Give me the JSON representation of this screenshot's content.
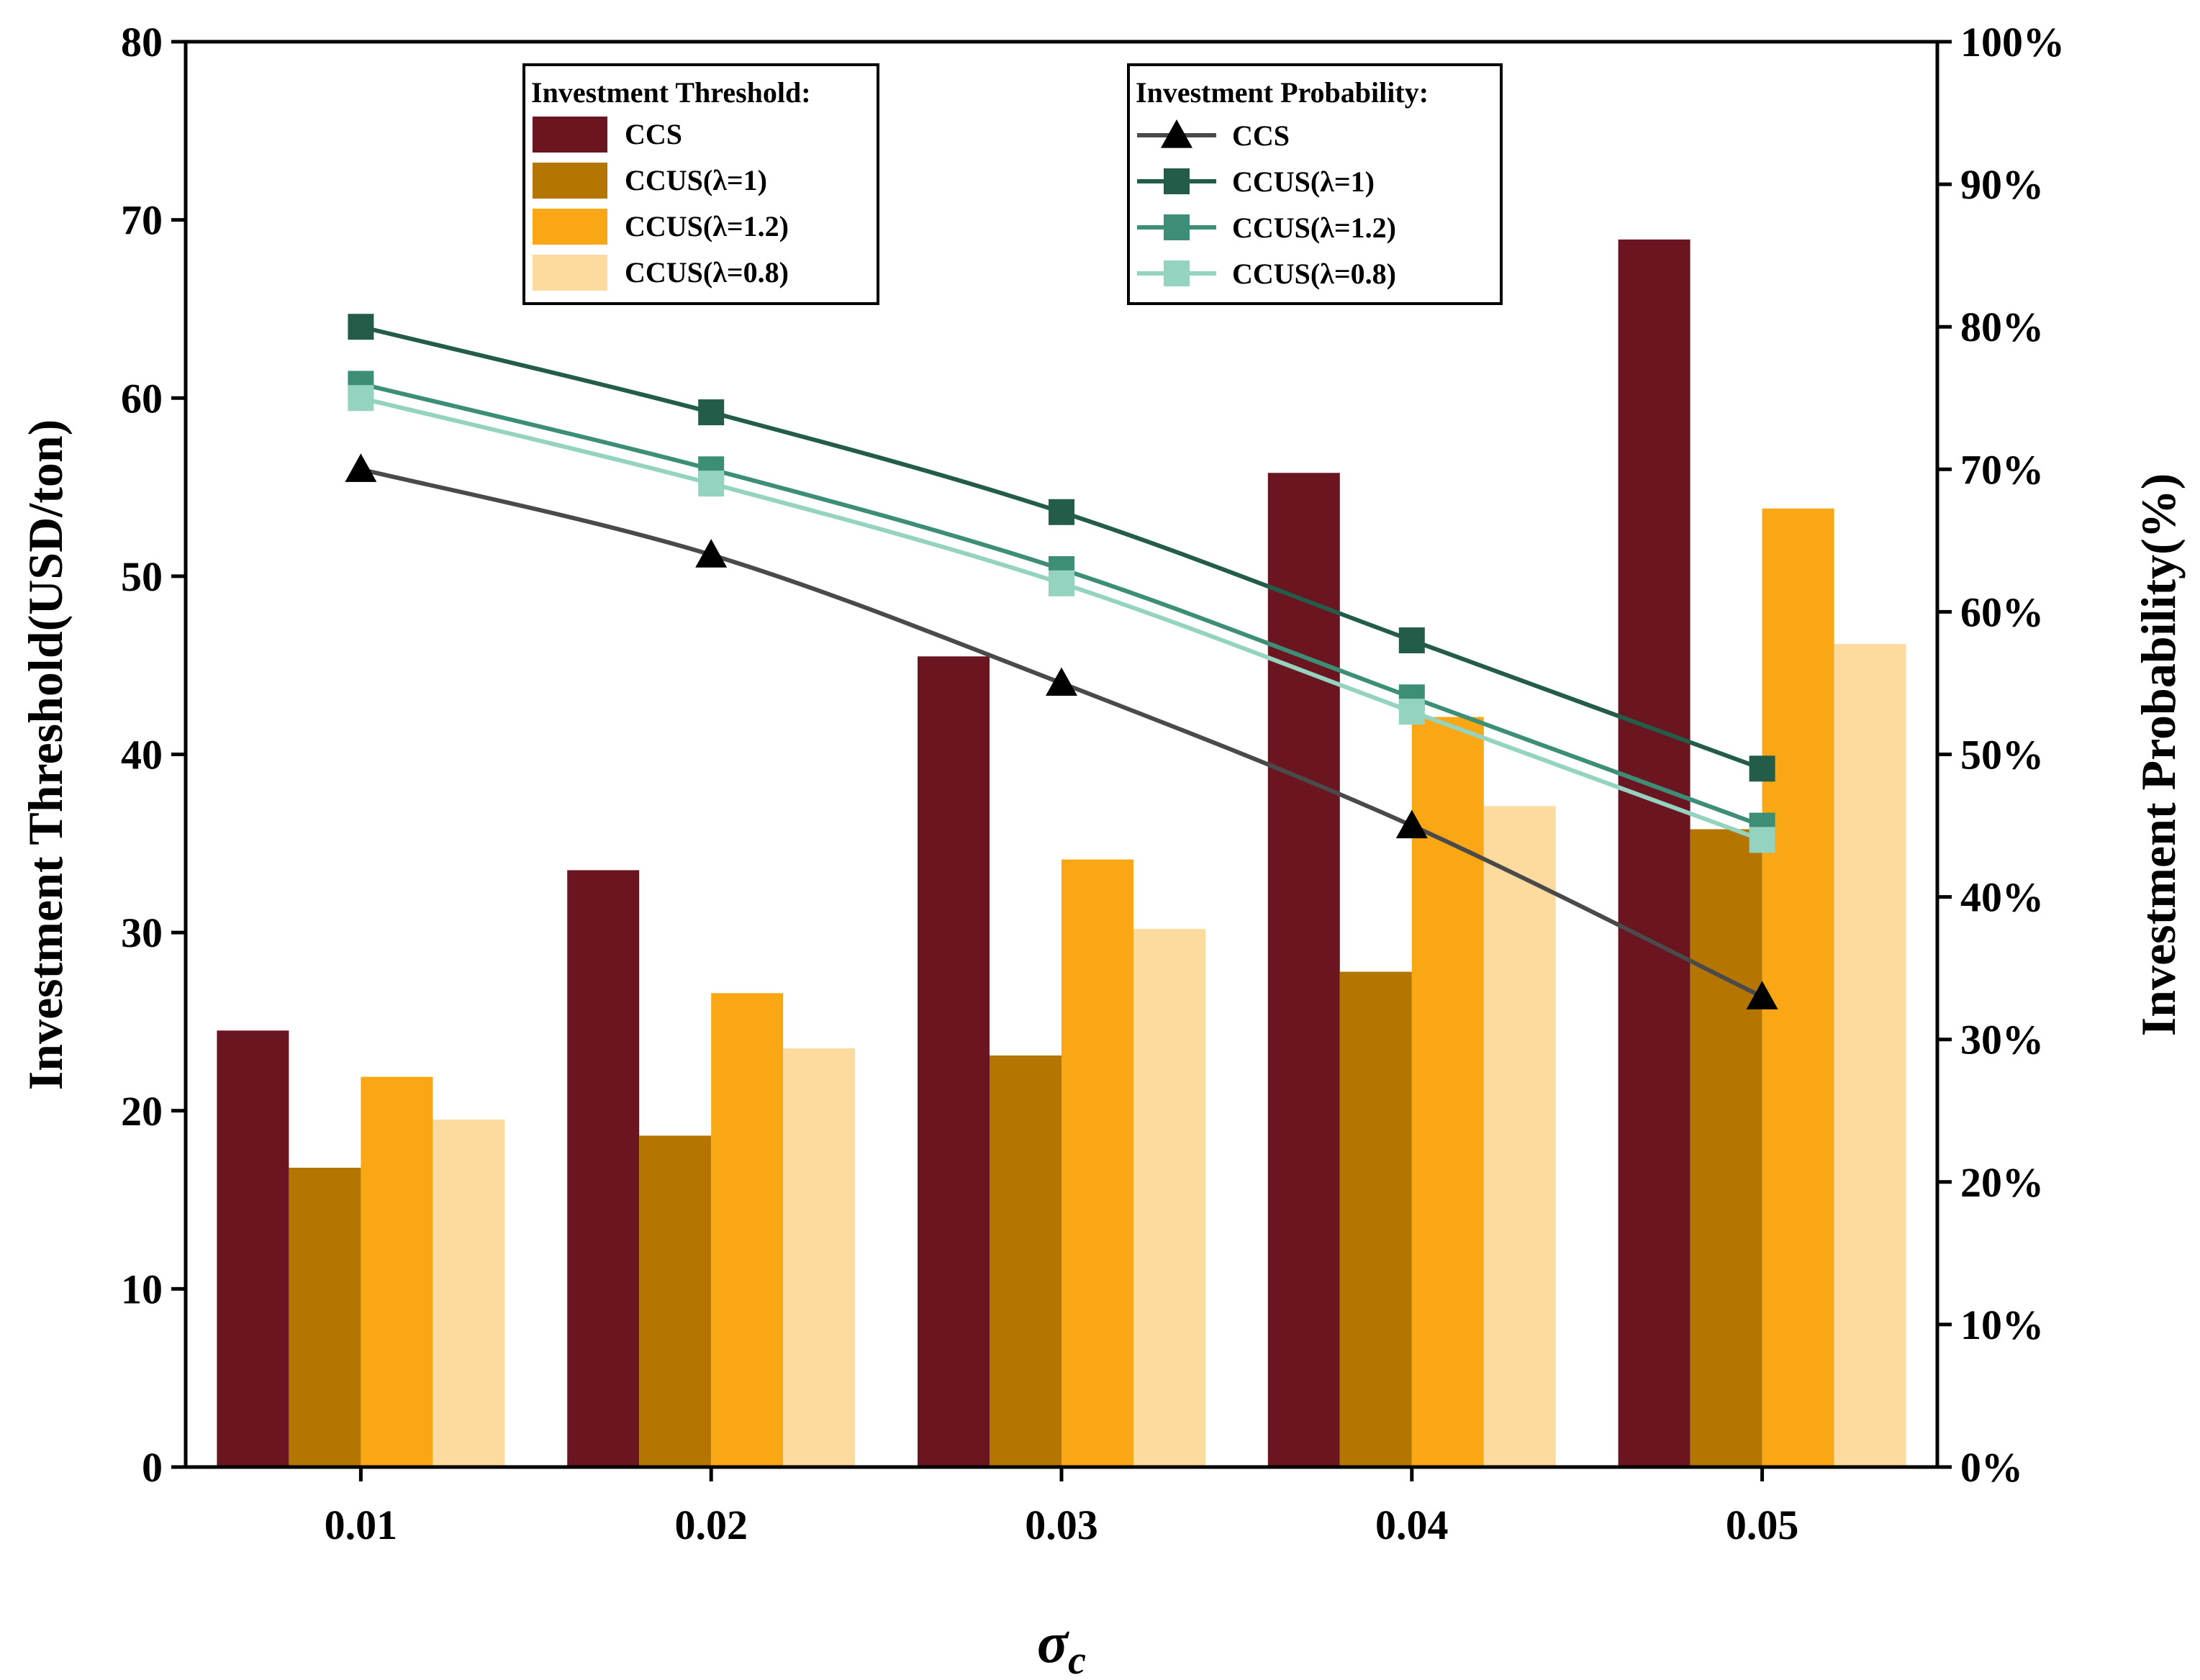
{
  "chart_data": {
    "type": "bar",
    "categories": [
      "0.01",
      "0.02",
      "0.03",
      "0.04",
      "0.05"
    ],
    "xlabel": "σc",
    "ylabel": "Investment Threshold(USD/ton)",
    "ylabel_right": "Investment Probability(%)",
    "ylim": [
      0,
      80
    ],
    "ylim_right": [
      0,
      100
    ],
    "yticks": [
      "0",
      "10",
      "20",
      "30",
      "40",
      "50",
      "60",
      "70",
      "80"
    ],
    "yticks_right": [
      "0%",
      "10%",
      "20%",
      "30%",
      "40%",
      "50%",
      "60%",
      "70%",
      "80%",
      "90%",
      "100%"
    ],
    "bar_legend_title": "Investment Threshold:",
    "line_legend_title": "Investment Probability:",
    "bar_series": [
      {
        "name": "CCS",
        "color": "#6b1520",
        "values": [
          24.5,
          33.5,
          45.5,
          55.8,
          68.9
        ]
      },
      {
        "name": "CCUS(λ=1)",
        "color": "#b47600",
        "values": [
          16.8,
          18.6,
          23.1,
          27.8,
          35.8
        ]
      },
      {
        "name": "CCUS(λ=1.2)",
        "color": "#f9a714",
        "values": [
          21.9,
          26.6,
          34.1,
          42.1,
          53.8
        ]
      },
      {
        "name": "CCUS(λ=0.8)",
        "color": "#fddb9e",
        "values": [
          19.5,
          23.5,
          30.2,
          37.1,
          46.2
        ]
      }
    ],
    "line_series": [
      {
        "name": "CCS",
        "color": "#4a4a4a",
        "marker": "triangle",
        "values": [
          70,
          64,
          55,
          45,
          33
        ]
      },
      {
        "name": "CCUS(λ=1)",
        "color": "#235c48",
        "marker": "square",
        "values": [
          80,
          74,
          67,
          58,
          49
        ]
      },
      {
        "name": "CCUS(λ=1.2)",
        "color": "#3c8f76",
        "marker": "square",
        "values": [
          76,
          70,
          63,
          54,
          45
        ]
      },
      {
        "name": "CCUS(λ=0.8)",
        "color": "#93d3bf",
        "marker": "square",
        "values": [
          75,
          69,
          62,
          53,
          44
        ]
      }
    ]
  }
}
